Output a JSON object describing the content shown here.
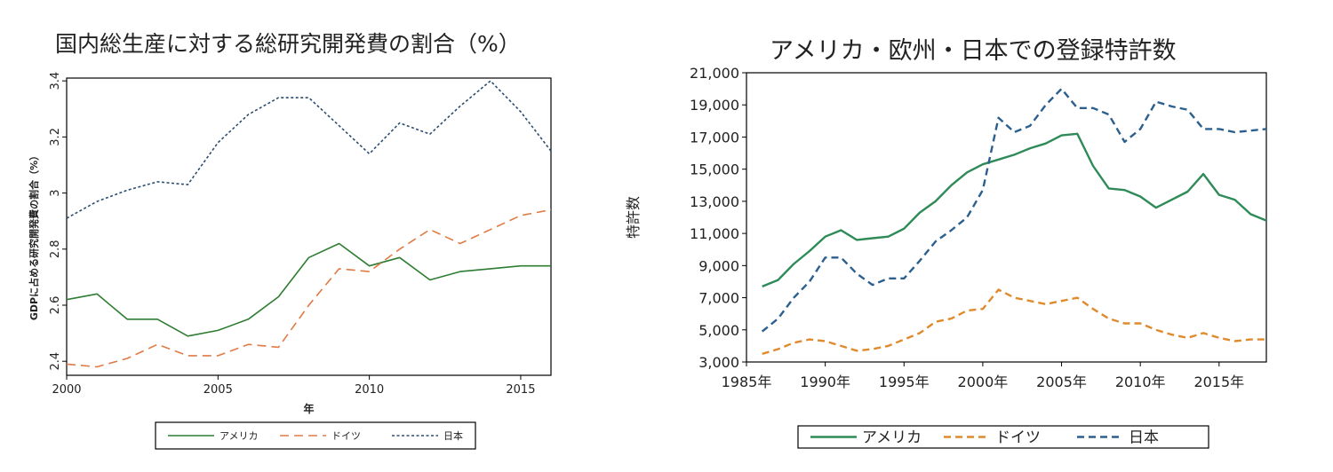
{
  "chart_data": [
    {
      "type": "line",
      "title": "国内総生産に対する総研究開発費の割合（%）",
      "xlabel": "年",
      "ylabel": "GDPに占める研究開発費の割合（%）",
      "x": [
        2000,
        2001,
        2002,
        2003,
        2004,
        2005,
        2006,
        2007,
        2008,
        2009,
        2010,
        2011,
        2012,
        2013,
        2014,
        2015,
        2016
      ],
      "xlim": [
        2000,
        2016
      ],
      "ylim": [
        2.35,
        3.41
      ],
      "xticks": [
        2000,
        2005,
        2010,
        2015
      ],
      "yticks": [
        2.4,
        2.6,
        2.8,
        3.0,
        3.2,
        3.4
      ],
      "ytick_labels": [
        "2.4",
        "2.6",
        "2.8",
        "3",
        "3.2",
        "3.4"
      ],
      "grid": false,
      "legend_position": "bottom",
      "series": [
        {
          "name": "アメリカ",
          "color": "#2e7d32",
          "style": "solid",
          "values": [
            2.62,
            2.64,
            2.55,
            2.55,
            2.49,
            2.51,
            2.55,
            2.63,
            2.77,
            2.82,
            2.74,
            2.77,
            2.69,
            2.72,
            2.73,
            2.74,
            2.74
          ]
        },
        {
          "name": "ドイツ",
          "color": "#e07b45",
          "style": "dashed",
          "values": [
            2.39,
            2.38,
            2.41,
            2.46,
            2.42,
            2.42,
            2.46,
            2.45,
            2.6,
            2.73,
            2.72,
            2.8,
            2.87,
            2.82,
            2.87,
            2.92,
            2.94
          ]
        },
        {
          "name": "日本",
          "color": "#2b4d6f",
          "style": "dotted",
          "values": [
            2.91,
            2.97,
            3.01,
            3.04,
            3.03,
            3.18,
            3.28,
            3.34,
            3.34,
            3.24,
            3.14,
            3.25,
            3.21,
            3.31,
            3.4,
            3.29,
            3.15
          ]
        }
      ]
    },
    {
      "type": "line",
      "title": "アメリカ・欧州・日本での登録特許数",
      "xlabel": "",
      "ylabel": "特許数",
      "x": [
        1986,
        1987,
        1988,
        1989,
        1990,
        1991,
        1992,
        1993,
        1994,
        1995,
        1996,
        1997,
        1998,
        1999,
        2000,
        2001,
        2002,
        2003,
        2004,
        2005,
        2006,
        2007,
        2008,
        2009,
        2010,
        2011,
        2012,
        2013,
        2014,
        2015,
        2016,
        2017,
        2018
      ],
      "xlim": [
        1985,
        2018
      ],
      "ylim": [
        3000,
        21000
      ],
      "xticks": [
        1985,
        1990,
        1995,
        2000,
        2005,
        2010,
        2015
      ],
      "xtick_labels": [
        "1985年",
        "1990年",
        "1995年",
        "2000年",
        "2005年",
        "2010年",
        "2015年"
      ],
      "yticks": [
        3000,
        5000,
        7000,
        9000,
        11000,
        13000,
        15000,
        17000,
        19000,
        21000
      ],
      "ytick_labels": [
        "3,000",
        "5,000",
        "7,000",
        "9,000",
        "11,000",
        "13,000",
        "15,000",
        "17,000",
        "19,000",
        "21,000"
      ],
      "grid": false,
      "legend_position": "bottom",
      "series": [
        {
          "name": "アメリカ",
          "color": "#2e8b57",
          "style": "solid",
          "values": [
            7700,
            8100,
            9100,
            9900,
            10800,
            11200,
            10600,
            10700,
            10800,
            11300,
            12300,
            13000,
            14000,
            14800,
            15300,
            15600,
            15900,
            16300,
            16600,
            17100,
            17200,
            15200,
            13800,
            13700,
            13300,
            12600,
            13100,
            13600,
            14700,
            13400,
            13100,
            12200,
            11800
          ]
        },
        {
          "name": "ドイツ",
          "color": "#e08a2e",
          "style": "dashed",
          "values": [
            3500,
            3800,
            4200,
            4400,
            4300,
            4000,
            3700,
            3800,
            4000,
            4400,
            4800,
            5500,
            5700,
            6200,
            6300,
            7500,
            7000,
            6800,
            6600,
            6800,
            7000,
            6300,
            5700,
            5400,
            5400,
            5000,
            4700,
            4500,
            4800,
            4500,
            4300,
            4400,
            4400
          ]
        },
        {
          "name": "日本",
          "color": "#2b5f8e",
          "style": "dashed",
          "values": [
            4900,
            5700,
            7000,
            8000,
            9500,
            9500,
            8500,
            7800,
            8200,
            8200,
            9300,
            10500,
            11200,
            12000,
            13700,
            18200,
            17300,
            17700,
            19000,
            20000,
            18800,
            18800,
            18400,
            16700,
            17500,
            19200,
            18900,
            18700,
            17500,
            17500,
            17300,
            17400,
            17500
          ]
        }
      ]
    }
  ]
}
